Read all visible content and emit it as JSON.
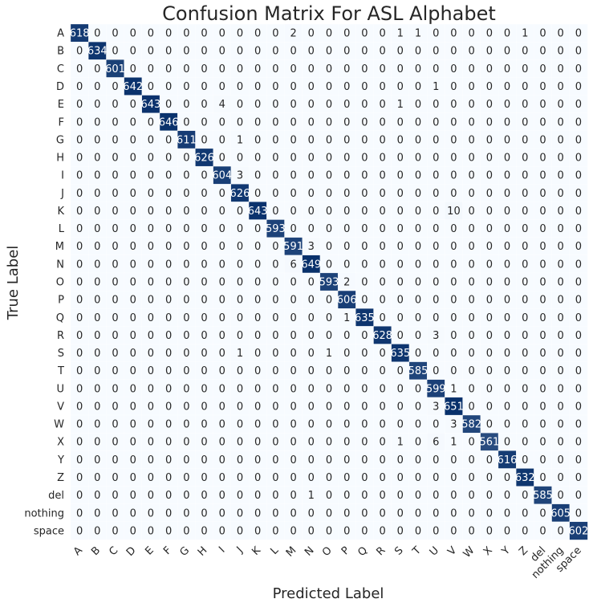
{
  "chart_data": {
    "type": "heatmap",
    "title": "Confusion Matrix For ASL Alphabet",
    "xlabel": "Predicted Label",
    "ylabel": "True Label",
    "labels": [
      "A",
      "B",
      "C",
      "D",
      "E",
      "F",
      "G",
      "H",
      "I",
      "J",
      "K",
      "L",
      "M",
      "N",
      "O",
      "P",
      "Q",
      "R",
      "S",
      "T",
      "U",
      "V",
      "W",
      "X",
      "Y",
      "Z",
      "del",
      "nothing",
      "space"
    ],
    "colorscale": [
      "#f7fbff",
      "#08306b"
    ],
    "grid": false,
    "matrix": [
      [
        618,
        0,
        0,
        0,
        0,
        0,
        0,
        0,
        0,
        0,
        0,
        0,
        2,
        0,
        0,
        0,
        0,
        0,
        1,
        1,
        0,
        0,
        0,
        0,
        0,
        1,
        0,
        0,
        0
      ],
      [
        0,
        634,
        0,
        0,
        0,
        0,
        0,
        0,
        0,
        0,
        0,
        0,
        0,
        0,
        0,
        0,
        0,
        0,
        0,
        0,
        0,
        0,
        0,
        0,
        0,
        0,
        0,
        0,
        0
      ],
      [
        0,
        0,
        601,
        0,
        0,
        0,
        0,
        0,
        0,
        0,
        0,
        0,
        0,
        0,
        0,
        0,
        0,
        0,
        0,
        0,
        0,
        0,
        0,
        0,
        0,
        0,
        0,
        0,
        0
      ],
      [
        0,
        0,
        0,
        642,
        0,
        0,
        0,
        0,
        0,
        0,
        0,
        0,
        0,
        0,
        0,
        0,
        0,
        0,
        0,
        0,
        1,
        0,
        0,
        0,
        0,
        0,
        0,
        0,
        0
      ],
      [
        0,
        0,
        0,
        0,
        643,
        0,
        0,
        0,
        4,
        0,
        0,
        0,
        0,
        0,
        0,
        0,
        0,
        0,
        1,
        0,
        0,
        0,
        0,
        0,
        0,
        0,
        0,
        0,
        0
      ],
      [
        0,
        0,
        0,
        0,
        0,
        646,
        0,
        0,
        0,
        0,
        0,
        0,
        0,
        0,
        0,
        0,
        0,
        0,
        0,
        0,
        0,
        0,
        0,
        0,
        0,
        0,
        0,
        0,
        0
      ],
      [
        0,
        0,
        0,
        0,
        0,
        0,
        611,
        0,
        0,
        1,
        0,
        0,
        0,
        0,
        0,
        0,
        0,
        0,
        0,
        0,
        0,
        0,
        0,
        0,
        0,
        0,
        0,
        0,
        0
      ],
      [
        0,
        0,
        0,
        0,
        0,
        0,
        0,
        626,
        0,
        0,
        0,
        0,
        0,
        0,
        0,
        0,
        0,
        0,
        0,
        0,
        0,
        0,
        0,
        0,
        0,
        0,
        0,
        0,
        0
      ],
      [
        0,
        0,
        0,
        0,
        0,
        0,
        0,
        0,
        604,
        3,
        0,
        0,
        0,
        0,
        0,
        0,
        0,
        0,
        0,
        0,
        0,
        0,
        0,
        0,
        0,
        0,
        0,
        0,
        0
      ],
      [
        0,
        0,
        0,
        0,
        0,
        0,
        0,
        0,
        0,
        626,
        0,
        0,
        0,
        0,
        0,
        0,
        0,
        0,
        0,
        0,
        0,
        0,
        0,
        0,
        0,
        0,
        0,
        0,
        0
      ],
      [
        0,
        0,
        0,
        0,
        0,
        0,
        0,
        0,
        0,
        0,
        643,
        0,
        0,
        0,
        0,
        0,
        0,
        0,
        0,
        0,
        0,
        10,
        0,
        0,
        0,
        0,
        0,
        0,
        0
      ],
      [
        0,
        0,
        0,
        0,
        0,
        0,
        0,
        0,
        0,
        0,
        0,
        593,
        0,
        0,
        0,
        0,
        0,
        0,
        0,
        0,
        0,
        0,
        0,
        0,
        0,
        0,
        0,
        0,
        0
      ],
      [
        0,
        0,
        0,
        0,
        0,
        0,
        0,
        0,
        0,
        0,
        0,
        0,
        591,
        3,
        0,
        0,
        0,
        0,
        0,
        0,
        0,
        0,
        0,
        0,
        0,
        0,
        0,
        0,
        0
      ],
      [
        0,
        0,
        0,
        0,
        0,
        0,
        0,
        0,
        0,
        0,
        0,
        0,
        6,
        649,
        0,
        0,
        0,
        0,
        0,
        0,
        0,
        0,
        0,
        0,
        0,
        0,
        0,
        0,
        0
      ],
      [
        0,
        0,
        0,
        0,
        0,
        0,
        0,
        0,
        0,
        0,
        0,
        0,
        0,
        0,
        593,
        2,
        0,
        0,
        0,
        0,
        0,
        0,
        0,
        0,
        0,
        0,
        0,
        0,
        0
      ],
      [
        0,
        0,
        0,
        0,
        0,
        0,
        0,
        0,
        0,
        0,
        0,
        0,
        0,
        0,
        0,
        606,
        0,
        0,
        0,
        0,
        0,
        0,
        0,
        0,
        0,
        0,
        0,
        0,
        0
      ],
      [
        0,
        0,
        0,
        0,
        0,
        0,
        0,
        0,
        0,
        0,
        0,
        0,
        0,
        0,
        0,
        1,
        635,
        0,
        0,
        0,
        0,
        0,
        0,
        0,
        0,
        0,
        0,
        0,
        0
      ],
      [
        0,
        0,
        0,
        0,
        0,
        0,
        0,
        0,
        0,
        0,
        0,
        0,
        0,
        0,
        0,
        0,
        0,
        628,
        0,
        0,
        3,
        0,
        0,
        0,
        0,
        0,
        0,
        0,
        0
      ],
      [
        0,
        0,
        0,
        0,
        0,
        0,
        0,
        0,
        0,
        1,
        0,
        0,
        0,
        0,
        1,
        0,
        0,
        0,
        635,
        0,
        0,
        0,
        0,
        0,
        0,
        0,
        0,
        0,
        0
      ],
      [
        0,
        0,
        0,
        0,
        0,
        0,
        0,
        0,
        0,
        0,
        0,
        0,
        0,
        0,
        0,
        0,
        0,
        0,
        0,
        585,
        0,
        0,
        0,
        0,
        0,
        0,
        0,
        0,
        0
      ],
      [
        0,
        0,
        0,
        0,
        0,
        0,
        0,
        0,
        0,
        0,
        0,
        0,
        0,
        0,
        0,
        0,
        0,
        0,
        0,
        0,
        599,
        1,
        0,
        0,
        0,
        0,
        0,
        0,
        0
      ],
      [
        0,
        0,
        0,
        0,
        0,
        0,
        0,
        0,
        0,
        0,
        0,
        0,
        0,
        0,
        0,
        0,
        0,
        0,
        0,
        0,
        3,
        651,
        0,
        0,
        0,
        0,
        0,
        0,
        0
      ],
      [
        0,
        0,
        0,
        0,
        0,
        0,
        0,
        0,
        0,
        0,
        0,
        0,
        0,
        0,
        0,
        0,
        0,
        0,
        0,
        0,
        0,
        3,
        582,
        0,
        0,
        0,
        0,
        0,
        0
      ],
      [
        0,
        0,
        0,
        0,
        0,
        0,
        0,
        0,
        0,
        0,
        0,
        0,
        0,
        0,
        0,
        0,
        0,
        0,
        1,
        0,
        6,
        1,
        0,
        561,
        0,
        0,
        0,
        0,
        0
      ],
      [
        0,
        0,
        0,
        0,
        0,
        0,
        0,
        0,
        0,
        0,
        0,
        0,
        0,
        0,
        0,
        0,
        0,
        0,
        0,
        0,
        0,
        0,
        0,
        0,
        616,
        0,
        0,
        0,
        0
      ],
      [
        0,
        0,
        0,
        0,
        0,
        0,
        0,
        0,
        0,
        0,
        0,
        0,
        0,
        0,
        0,
        0,
        0,
        0,
        0,
        0,
        0,
        0,
        0,
        0,
        0,
        632,
        0,
        0,
        0
      ],
      [
        0,
        0,
        0,
        0,
        0,
        0,
        0,
        0,
        0,
        0,
        0,
        0,
        0,
        1,
        0,
        0,
        0,
        0,
        0,
        0,
        0,
        0,
        0,
        0,
        0,
        0,
        585,
        0,
        0
      ],
      [
        0,
        0,
        0,
        0,
        0,
        0,
        0,
        0,
        0,
        0,
        0,
        0,
        0,
        0,
        0,
        0,
        0,
        0,
        0,
        0,
        0,
        0,
        0,
        0,
        0,
        0,
        0,
        605,
        0
      ],
      [
        0,
        0,
        0,
        0,
        0,
        0,
        0,
        0,
        0,
        0,
        0,
        0,
        0,
        0,
        0,
        0,
        0,
        0,
        0,
        0,
        0,
        0,
        0,
        0,
        0,
        0,
        0,
        0,
        602
      ]
    ]
  }
}
